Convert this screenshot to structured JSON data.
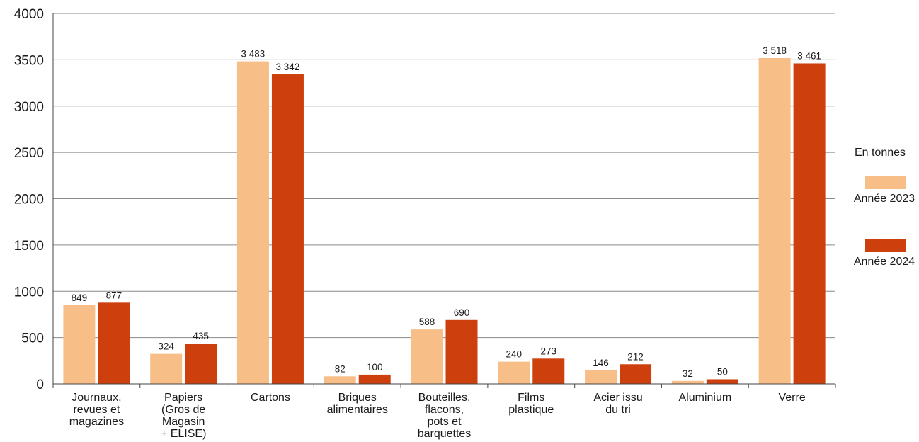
{
  "chart_data": {
    "type": "bar",
    "title": "",
    "unit_label": "En tonnes",
    "categories": [
      [
        "Journaux,",
        "revues et",
        "magazines"
      ],
      [
        "Papiers",
        "(Gros de",
        "Magasin",
        "+ ELISE)"
      ],
      [
        "Cartons"
      ],
      [
        "Briques",
        "alimentaires"
      ],
      [
        "Bouteilles,",
        "flacons,",
        "pots et",
        "barquettes"
      ],
      [
        "Films",
        "plastique"
      ],
      [
        "Acier issu",
        "du tri"
      ],
      [
        "Aluminium"
      ],
      [
        "Verre"
      ]
    ],
    "series": [
      {
        "name": "Année 2023",
        "color": "#f8be88",
        "values": [
          849,
          324,
          3483,
          82,
          588,
          240,
          146,
          32,
          3518
        ],
        "labels": [
          "849",
          "324",
          "3 483",
          "82",
          "588",
          "240",
          "146",
          "32",
          "3 518"
        ]
      },
      {
        "name": "Année 2024",
        "color": "#cd3f0c",
        "values": [
          877,
          435,
          3342,
          100,
          690,
          273,
          212,
          50,
          3461
        ],
        "labels": [
          "877",
          "435",
          "3 342",
          "100",
          "690",
          "273",
          "212",
          "50",
          "3 461"
        ]
      }
    ],
    "ylim": [
      0,
      4000
    ],
    "yticks": [
      "0",
      "500",
      "1000",
      "1500",
      "2000",
      "2500",
      "3000",
      "3500",
      "4000"
    ],
    "grid": true,
    "legend_position": "right"
  }
}
